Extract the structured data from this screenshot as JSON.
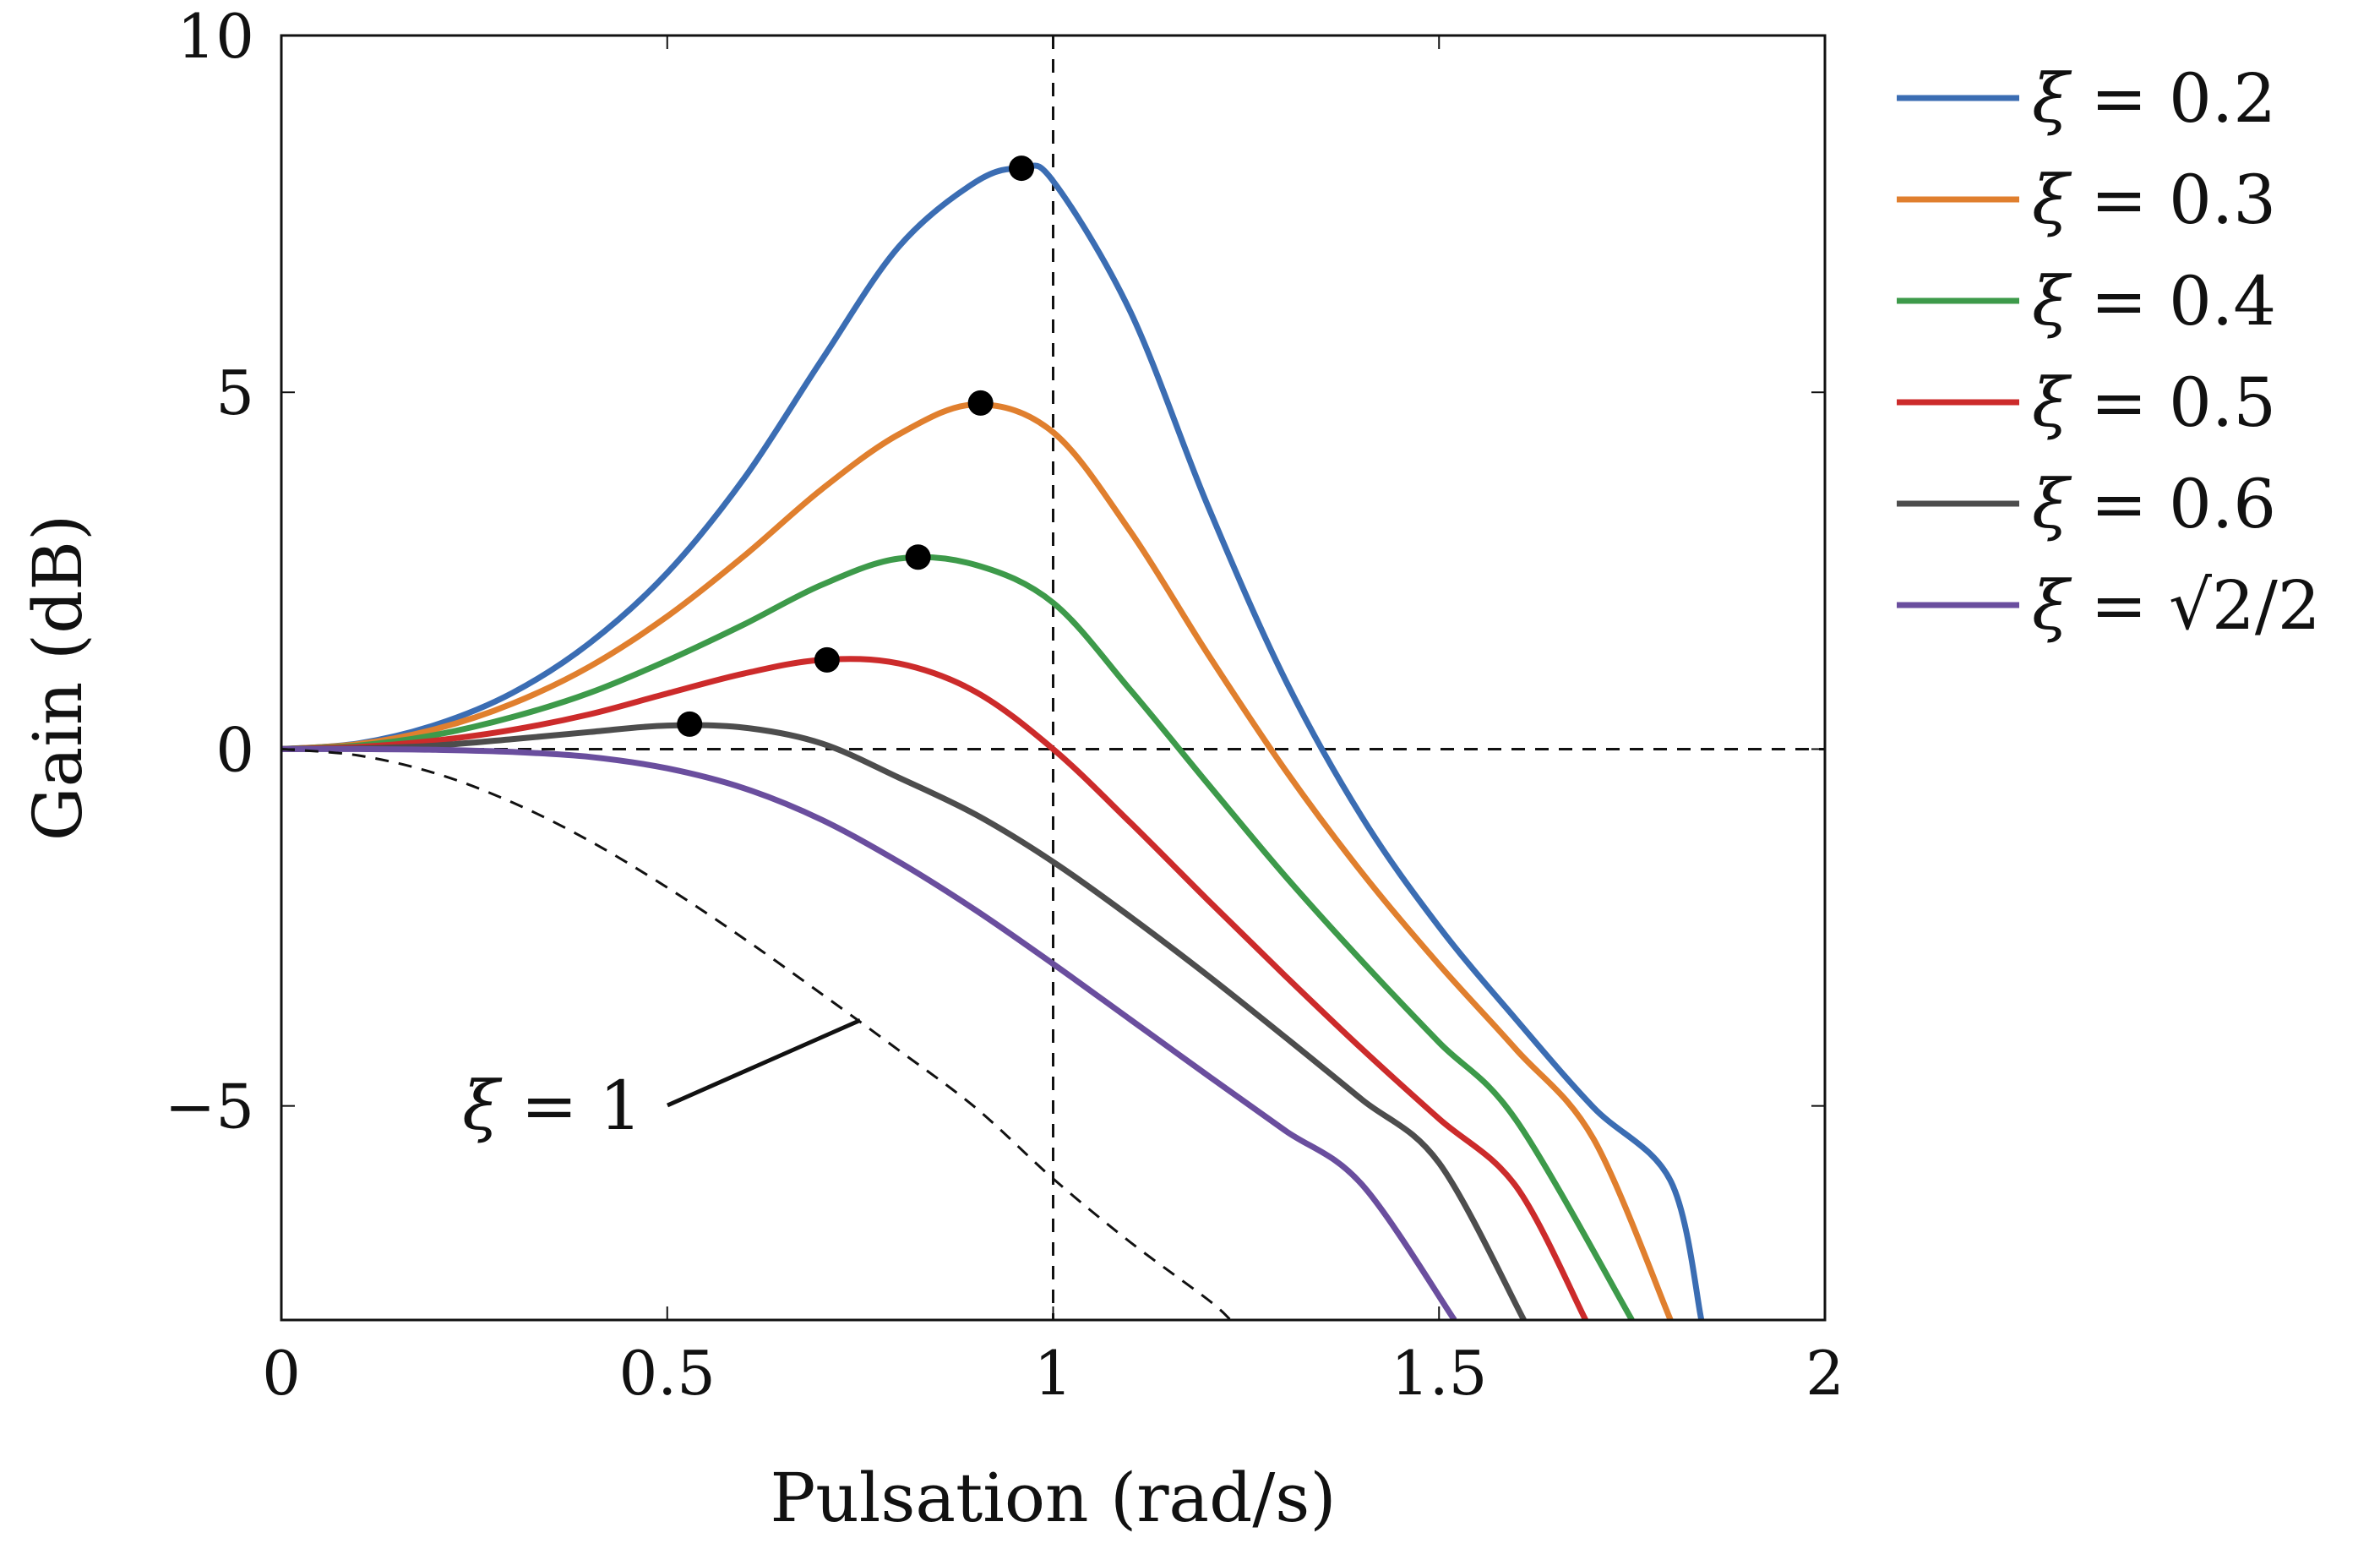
{
  "chart_data": {
    "type": "line",
    "xlabel": "Pulsation (rad/s)",
    "ylabel": "Gain (dB)",
    "xlim": [
      0,
      2
    ],
    "ylim": [
      -8,
      10
    ],
    "x_ticks": [
      0,
      0.5,
      1,
      1.5,
      2
    ],
    "x_tick_labels": [
      "0",
      "0.5",
      "1",
      "1.5",
      "2"
    ],
    "y_ticks": [
      -5,
      0,
      5,
      10
    ],
    "y_tick_labels": [
      "−5",
      "0",
      "5",
      "10"
    ],
    "grid": false,
    "legend_position": "outside-right",
    "reference_lines": [
      {
        "orientation": "horizontal",
        "value": 0,
        "style": "dashed"
      },
      {
        "orientation": "vertical",
        "value": 1,
        "style": "dashed"
      }
    ],
    "series": [
      {
        "name": "ξ = 0.2",
        "xi": 0.2,
        "color": "#3b6db3",
        "style": "solid",
        "x": [
          0,
          0.1,
          0.2,
          0.3,
          0.4,
          0.5,
          0.6,
          0.7,
          0.8,
          0.9,
          0.96,
          1.0,
          1.1,
          1.2,
          1.3,
          1.4,
          1.5,
          1.6,
          1.7,
          1.8,
          1.84
        ],
        "y": [
          0,
          0.08,
          0.34,
          0.79,
          1.49,
          2.47,
          3.8,
          5.45,
          7.04,
          7.95,
          8.14,
          7.96,
          6.13,
          3.42,
          0.99,
          -0.95,
          -2.49,
          -3.79,
          -5.02,
          -6.05,
          -8.0
        ],
        "peak": {
          "x": 0.959,
          "y": 8.14
        }
      },
      {
        "name": "ξ = 0.3",
        "xi": 0.3,
        "color": "#e07f2e",
        "style": "solid",
        "x": [
          0,
          0.1,
          0.2,
          0.3,
          0.4,
          0.5,
          0.6,
          0.7,
          0.8,
          0.9,
          1.0,
          1.1,
          1.2,
          1.3,
          1.4,
          1.5,
          1.6,
          1.7,
          1.8
        ],
        "y": [
          0,
          0.07,
          0.28,
          0.64,
          1.16,
          1.86,
          2.71,
          3.64,
          4.41,
          4.83,
          4.44,
          3.05,
          1.34,
          -0.28,
          -1.73,
          -3.02,
          -4.21,
          -5.46,
          -8.0
        ],
        "peak": {
          "x": 0.906,
          "y": 4.85
        }
      },
      {
        "name": "ξ = 0.4",
        "xi": 0.4,
        "color": "#3d9a4a",
        "style": "solid",
        "x": [
          0,
          0.1,
          0.2,
          0.3,
          0.4,
          0.5,
          0.6,
          0.7,
          0.8,
          0.9,
          1.0,
          1.1,
          1.2,
          1.3,
          1.4,
          1.5,
          1.6,
          1.75
        ],
        "y": [
          0,
          0.05,
          0.2,
          0.45,
          0.79,
          1.24,
          1.75,
          2.3,
          2.67,
          2.58,
          2.05,
          0.83,
          -0.48,
          -1.77,
          -2.97,
          -4.11,
          -5.2,
          -8.0
        ],
        "peak": {
          "x": 0.825,
          "y": 2.69
        }
      },
      {
        "name": "ξ = 0.5",
        "xi": 0.5,
        "color": "#cc2b2b",
        "style": "solid",
        "x": [
          0,
          0.1,
          0.2,
          0.3,
          0.4,
          0.5,
          0.6,
          0.7,
          0.8,
          0.9,
          1.0,
          1.1,
          1.2,
          1.3,
          1.4,
          1.5,
          1.6,
          1.69
        ],
        "y": [
          0,
          0.03,
          0.12,
          0.27,
          0.49,
          0.78,
          1.06,
          1.25,
          1.2,
          0.8,
          0.0,
          -1.03,
          -2.11,
          -3.17,
          -4.2,
          -5.18,
          -6.13,
          -8.0
        ],
        "peak": {
          "x": 0.707,
          "y": 1.25
        }
      },
      {
        "name": "ξ = 0.6",
        "xi": 0.6,
        "color": "#4d4d4d",
        "style": "solid",
        "x": [
          0,
          0.1,
          0.2,
          0.3,
          0.4,
          0.5,
          0.6,
          0.7,
          0.8,
          0.9,
          1.0,
          1.1,
          1.2,
          1.3,
          1.4,
          1.5,
          1.61
        ],
        "y": [
          0,
          0.01,
          0.05,
          0.14,
          0.24,
          0.33,
          0.3,
          0.08,
          -0.4,
          -0.92,
          -1.58,
          -2.35,
          -3.17,
          -4.03,
          -4.91,
          -5.8,
          -8.0
        ],
        "peak": {
          "x": 0.529,
          "y": 0.35
        }
      },
      {
        "name": "ξ = √2/2",
        "xi": 0.7071,
        "color": "#6a4e9e",
        "style": "solid",
        "x": [
          0,
          0.1,
          0.2,
          0.3,
          0.4,
          0.5,
          0.6,
          0.7,
          0.8,
          0.9,
          1.0,
          1.1,
          1.2,
          1.3,
          1.4,
          1.52
        ],
        "y": [
          0,
          0.0,
          -0.01,
          -0.04,
          -0.11,
          -0.27,
          -0.55,
          -0.99,
          -1.58,
          -2.26,
          -3.01,
          -3.79,
          -4.57,
          -5.34,
          -6.1,
          -8.0
        ],
        "peak": null
      },
      {
        "name": "ξ = 1",
        "xi": 1.0,
        "color": "#111111",
        "style": "dashed",
        "x": [
          0,
          0.1,
          0.2,
          0.3,
          0.4,
          0.5,
          0.6,
          0.7,
          0.8,
          0.9,
          1.0,
          1.1,
          1.2,
          1.23
        ],
        "y": [
          0,
          -0.09,
          -0.34,
          -0.75,
          -1.29,
          -1.94,
          -2.66,
          -3.43,
          -4.22,
          -5.03,
          -6.02,
          -6.91,
          -7.71,
          -8.0
        ],
        "peak": null
      }
    ],
    "annotations": [
      {
        "text": "ξ = 1",
        "points_to": {
          "x": 0.75,
          "y": -3.8
        }
      }
    ]
  }
}
